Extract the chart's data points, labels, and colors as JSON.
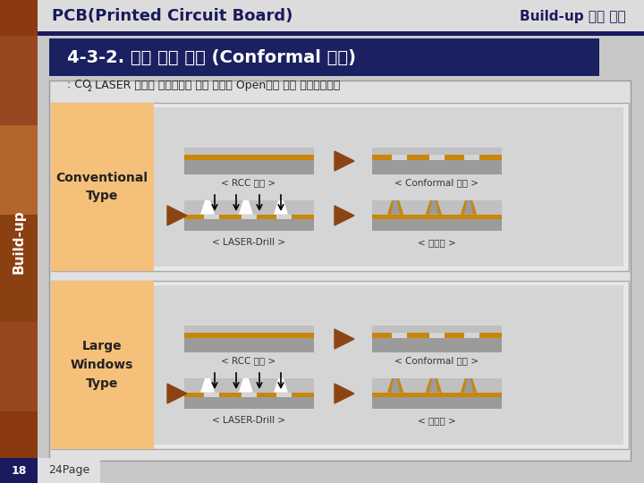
{
  "title_left": "PCB(Printed Circuit Board)",
  "title_right": "Build-up 교육 자료",
  "subtitle": "4-3-2. 주요 공정 비교 (Conformal 공정)",
  "desc_pre": ": CO",
  "desc_sub": "2",
  "desc_post": " LASER 가공전 해당부위의 동박 부분을 Open시켜 주는 회로형성공정",
  "row1_label": "Conventional\nType",
  "row2_label": "Large\nWindows\nType",
  "label_rcc": "< RCC 적층 >",
  "label_conformal": "< Conformal 형성 >",
  "label_laser": "< LASER-Drill >",
  "label_plating": "< 동도금 >",
  "bg_color": "#C8C8C8",
  "header_bg": "#DCDCDC",
  "title_color": "#1a1a5e",
  "section_header_bg": "#1a2060",
  "row_label_bg": "#F5C07A",
  "diagram_bg": "#D5D5D5",
  "copper_color": "#C8860A",
  "substrate_color": "#9B9B9B",
  "resin_color": "#C0C0C0",
  "arrow_color": "#8B4513",
  "left_strip_color": "#8B3A10",
  "navy_color": "#1a1a5e",
  "page_num": "18",
  "page_label": "24Page"
}
